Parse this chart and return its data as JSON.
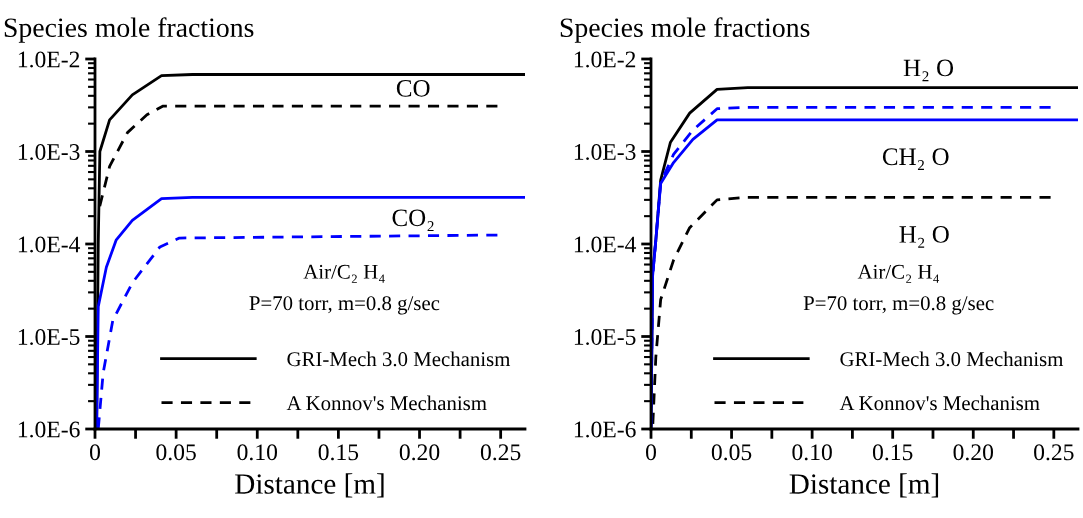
{
  "chart_data": [
    {
      "type": "line",
      "title": "Species mole fractions",
      "xlabel": "Distance [m]",
      "log": "y",
      "grid": false,
      "legend": "bottom right",
      "xlim": [
        0,
        0.265
      ],
      "xticks": [
        0,
        {
          "value": 0.025,
          "label": null
        },
        {
          "value": 0.05,
          "label": "0.05"
        },
        {
          "value": 0.075,
          "label": null
        },
        {
          "value": 0.1,
          "label": "0.10"
        },
        {
          "value": 0.125,
          "label": null
        },
        {
          "value": 0.15,
          "label": "0.15"
        },
        {
          "value": 0.175,
          "label": null
        },
        {
          "value": 0.2,
          "label": "0.20"
        },
        {
          "value": 0.225,
          "label": null
        },
        {
          "value": 0.25,
          "label": "0.25"
        }
      ],
      "ylim": [
        1e-06,
        0.01
      ],
      "yticks": [
        {
          "value": 1e-06,
          "label": "1.0E-6"
        },
        {
          "value": 1e-05,
          "label": "1.0E-5"
        },
        {
          "value": 0.0001,
          "label": "1.0E-4"
        },
        {
          "value": 0.001,
          "label": "1.0E-3"
        },
        {
          "value": 0.01,
          "label": "1.0E-2"
        }
      ],
      "series": [
        {
          "name": "GRI-Mech 3.0 Mechanism",
          "color": "#000000",
          "line_style": "solid",
          "x": [
            0.001,
            0.002,
            0.003,
            0.009,
            0.023,
            0.041,
            0.06,
            0.265
          ],
          "values": [
            1e-06,
            0.0001,
            0.001,
            0.0022,
            0.0041,
            0.0066,
            0.0068,
            0.0068
          ]
        },
        {
          "name": "A Konnov's Mechanism",
          "color": "#000000",
          "line_style": "dashed",
          "x": [
            0.002,
            0.009,
            0.02,
            0.032,
            0.042,
            0.248
          ],
          "values": [
            0.00022,
            0.00069,
            0.0016,
            0.0025,
            0.0031,
            0.0031
          ]
        },
        {
          "color": "#0000ff",
          "line_style": "solid",
          "x": [
            0.001,
            0.002,
            0.007,
            0.013,
            0.023,
            0.041,
            0.06,
            0.265
          ],
          "values": [
            1e-06,
            2.1e-05,
            5.6e-05,
            0.00011,
            0.00018,
            0.00031,
            0.00032,
            0.00032
          ]
        },
        {
          "color": "#0000ff",
          "line_style": "dashed",
          "x": [
            0.002,
            0.005,
            0.011,
            0.023,
            0.04,
            0.052,
            0.248
          ],
          "values": [
            1e-06,
            4e-06,
            1.5e-05,
            3.8e-05,
            9.3e-05,
            0.000116,
            0.000125
          ]
        }
      ],
      "annotations": [
        "CO",
        "CO₂",
        "Air/C₂ H₄",
        "P=70 torr, m=0.8 g/sec"
      ]
    },
    {
      "type": "line",
      "title": "Species mole fractions",
      "xlabel": "Distance [m]",
      "log": "y",
      "grid": false,
      "legend": "bottom right",
      "xlim": [
        0,
        0.265
      ],
      "xticks": [
        0,
        {
          "value": 0.025,
          "label": null
        },
        {
          "value": 0.05,
          "label": "0.05"
        },
        {
          "value": 0.075,
          "label": null
        },
        {
          "value": 0.1,
          "label": "0.10"
        },
        {
          "value": 0.125,
          "label": null
        },
        {
          "value": 0.15,
          "label": "0.15"
        },
        {
          "value": 0.175,
          "label": null
        },
        {
          "value": 0.2,
          "label": "0.20"
        },
        {
          "value": 0.225,
          "label": null
        },
        {
          "value": 0.25,
          "label": "0.25"
        }
      ],
      "ylim": [
        1e-06,
        0.01
      ],
      "yticks": [
        {
          "value": 1e-06,
          "label": "1.0E-6"
        },
        {
          "value": 1e-05,
          "label": "1.0E-5"
        },
        {
          "value": 0.0001,
          "label": "1.0E-4"
        },
        {
          "value": 0.001,
          "label": "1.0E-3"
        },
        {
          "value": 0.01,
          "label": "1.0E-2"
        }
      ],
      "series": [
        {
          "name": "GRI-Mech 3.0 Mechanism",
          "color": "#000000",
          "line_style": "solid",
          "x": [
            0.0,
            0.001,
            0.003,
            0.006,
            0.012,
            0.024,
            0.041,
            0.06,
            0.265
          ],
          "values": [
            1e-06,
            4.9e-05,
            0.00011,
            0.00049,
            0.00125,
            0.0026,
            0.0047,
            0.0049,
            0.0049
          ]
        },
        {
          "name": "A Konnov's Mechanism",
          "color": "#000000",
          "line_style": "dashed",
          "x": [
            0.001,
            0.003,
            0.006,
            0.014,
            0.024,
            0.041,
            0.06,
            0.248
          ],
          "values": [
            1e-06,
            6e-06,
            2.5e-05,
            6.7e-05,
            0.00015,
            0.0003,
            0.00032,
            0.00032
          ]
        },
        {
          "color": "#0000ff",
          "line_style": "solid",
          "x": [
            0.0,
            0.001,
            0.003,
            0.006,
            0.014,
            0.026,
            0.041,
            0.06,
            0.265
          ],
          "values": [
            1e-06,
            4.5e-05,
            0.00011,
            0.00045,
            0.00076,
            0.00135,
            0.0022,
            0.0022,
            0.0022
          ]
        },
        {
          "color": "#0000ff",
          "line_style": "dashed",
          "x": [
            0.0,
            0.001,
            0.003,
            0.006,
            0.014,
            0.026,
            0.041,
            0.06,
            0.248
          ],
          "values": [
            1e-06,
            4.5e-05,
            0.00011,
            0.00046,
            0.00093,
            0.0017,
            0.0029,
            0.003,
            0.003
          ]
        }
      ],
      "annotations": [
        "H₂ O",
        "CH₂ O",
        "H₂ O",
        "Air/C₂ H₄",
        "P=70 torr, m=0.8 g/sec"
      ]
    }
  ]
}
